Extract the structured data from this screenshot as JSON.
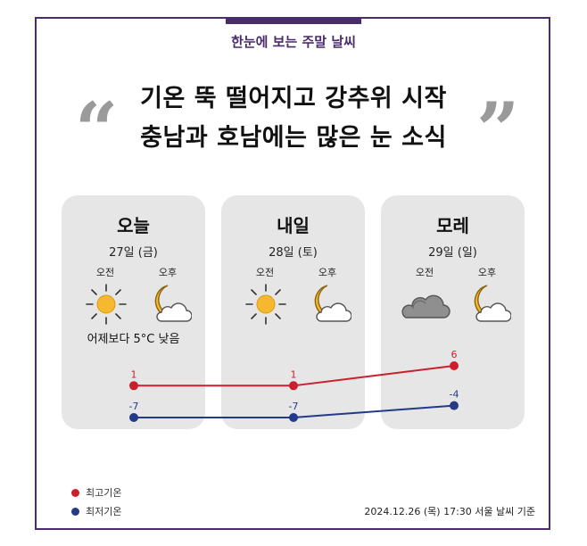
{
  "subtitle": "한눈에 보는 주말 날씨",
  "headline": {
    "line1": "기온 뚝 떨어지고 강추위 시작",
    "line2": "충남과 호남에는 많은 눈 소식",
    "open_quote": "“",
    "close_quote": "”"
  },
  "days": [
    {
      "name": "오늘",
      "date": "27일 (금)",
      "am_label": "오전",
      "pm_label": "오후",
      "am_icon": "sun-icon",
      "pm_icon": "moon-cloud-icon",
      "note": "어제보다 5°C 낮음"
    },
    {
      "name": "내일",
      "date": "28일 (토)",
      "am_label": "오전",
      "pm_label": "오후",
      "am_icon": "sun-icon",
      "pm_icon": "moon-cloud-icon",
      "note": ""
    },
    {
      "name": "모레",
      "date": "29일 (일)",
      "am_label": "오전",
      "pm_label": "오후",
      "am_icon": "cloud-icon",
      "pm_icon": "moon-cloud-icon",
      "note": ""
    }
  ],
  "chart_data": {
    "type": "line",
    "categories": [
      "27일 (금)",
      "28일 (토)",
      "29일 (일)"
    ],
    "series": [
      {
        "name": "최고기온",
        "values": [
          1,
          1,
          6
        ],
        "color": "#cc1f2d"
      },
      {
        "name": "최저기온",
        "values": [
          -7,
          -7,
          -4
        ],
        "color": "#233a8a"
      }
    ],
    "ylim": [
      -8,
      7
    ],
    "legend": "bottom-left",
    "grid": false
  },
  "legend": {
    "high": "최고기온",
    "low": "최저기온"
  },
  "footnote": "2024.12.26 (목) 17:30 서울 날씨 기준",
  "colors": {
    "accent": "#4a2b6b",
    "card": "#e6e6e6",
    "quote": "#9a9a9a",
    "high": "#cc1f2d",
    "low": "#233a8a",
    "sun": "#f5b82e"
  }
}
